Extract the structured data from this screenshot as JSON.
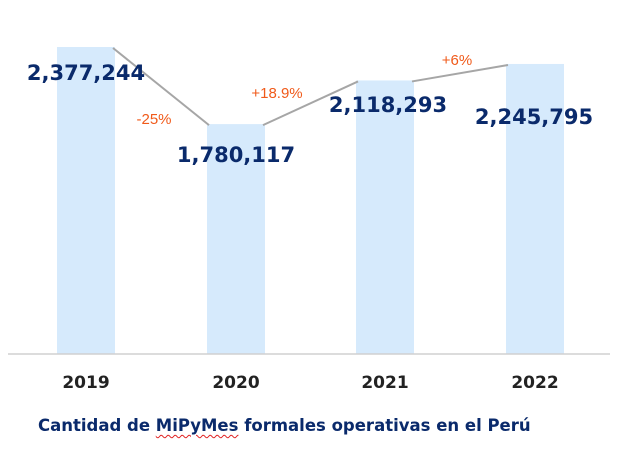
{
  "chart_data": {
    "type": "bar",
    "title": "Cantidad de MiPyMes formales operativas en el Perú",
    "title_parts": [
      "Cantidad de ",
      "MiPyMes",
      " formales operativas en el Perú"
    ],
    "categories": [
      "2019",
      "2020",
      "2021",
      "2022"
    ],
    "values": [
      2377244,
      1780117,
      2118293,
      2245795
    ],
    "value_labels": [
      "2,377,244",
      "1,780,117",
      "2,118,293",
      "2,245,795"
    ],
    "changes": [
      "-25%",
      "+18.9%",
      "+6%"
    ],
    "ylim": [
      0,
      2377244
    ],
    "xlabel": "",
    "ylabel": "",
    "grid": false,
    "colors": {
      "bar": "#d6eafc",
      "line": "#a6a6a6",
      "value_label": "#0a2a6b",
      "change_label": "#f05a1a",
      "axis": "#d0d0d0"
    }
  }
}
